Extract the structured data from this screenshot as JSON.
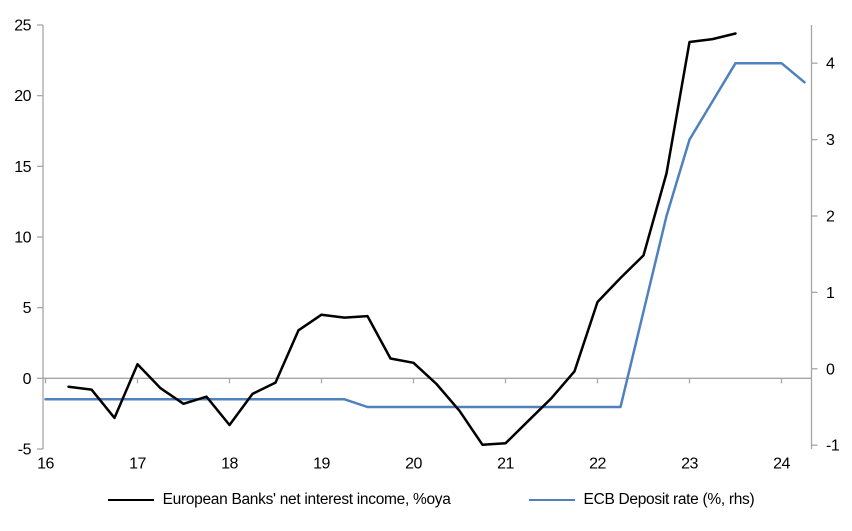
{
  "chart_data": {
    "type": "line",
    "title": "",
    "xlabel": "",
    "ylabel_left": "",
    "ylabel_right": "",
    "x_tick_labels": [
      "16",
      "17",
      "18",
      "19",
      "20",
      "21",
      "22",
      "23",
      "24"
    ],
    "left_axis": {
      "ticks": [
        25,
        20,
        15,
        10,
        5,
        0,
        -5
      ],
      "min": -5,
      "max": 25
    },
    "right_axis": {
      "ticks": [
        4,
        3,
        2,
        1,
        0,
        -1
      ],
      "min": -1.05,
      "max": 4.5
    },
    "grid": "off",
    "legend_position": "bottom",
    "series": [
      {
        "name": "European Banks' net interest income, %oya",
        "axis": "left",
        "color": "#000000",
        "x": [
          16.25,
          16.5,
          16.75,
          17.0,
          17.25,
          17.5,
          17.75,
          18.0,
          18.25,
          18.5,
          18.75,
          19.0,
          19.25,
          19.5,
          19.75,
          20.0,
          20.25,
          20.5,
          20.75,
          21.0,
          21.25,
          21.5,
          21.75,
          22.0,
          22.25,
          22.5,
          22.75,
          23.0,
          23.25,
          23.5
        ],
        "values": [
          -0.6,
          -0.8,
          -2.8,
          1.0,
          -0.7,
          -1.8,
          -1.3,
          -3.3,
          -1.1,
          -0.3,
          3.4,
          4.5,
          4.3,
          4.4,
          1.4,
          1.1,
          -0.4,
          -2.3,
          -4.7,
          -4.6,
          -3.0,
          -1.4,
          0.5,
          5.4,
          7.1,
          8.7,
          14.5,
          23.8,
          24.0,
          24.4
        ]
      },
      {
        "name": "ECB Deposit rate (%, rhs)",
        "axis": "right",
        "color": "#4F81BD",
        "x": [
          16.0,
          16.25,
          16.5,
          16.75,
          17.0,
          17.25,
          17.5,
          17.75,
          18.0,
          18.25,
          18.5,
          18.75,
          19.0,
          19.25,
          19.5,
          19.75,
          20.0,
          20.25,
          20.5,
          20.75,
          21.0,
          21.25,
          21.5,
          21.75,
          22.0,
          22.25,
          22.5,
          22.75,
          23.0,
          23.25,
          23.5,
          23.75,
          24.0,
          24.25
        ],
        "values": [
          -0.4,
          -0.4,
          -0.4,
          -0.4,
          -0.4,
          -0.4,
          -0.4,
          -0.4,
          -0.4,
          -0.4,
          -0.4,
          -0.4,
          -0.4,
          -0.4,
          -0.5,
          -0.5,
          -0.5,
          -0.5,
          -0.5,
          -0.5,
          -0.5,
          -0.5,
          -0.5,
          -0.5,
          -0.5,
          -0.5,
          0.75,
          2.0,
          3.0,
          3.5,
          4.0,
          4.0,
          4.0,
          3.75
        ]
      }
    ]
  },
  "colors": {
    "axis": "#A6A6A6",
    "zero_line": "#A6A6A6",
    "text": "#000000",
    "series_black": "#000000",
    "series_blue": "#4F81BD"
  },
  "legend": {
    "items": [
      {
        "label": "European Banks' net interest income, %oya"
      },
      {
        "label": "ECB Deposit rate (%, rhs)"
      }
    ]
  }
}
